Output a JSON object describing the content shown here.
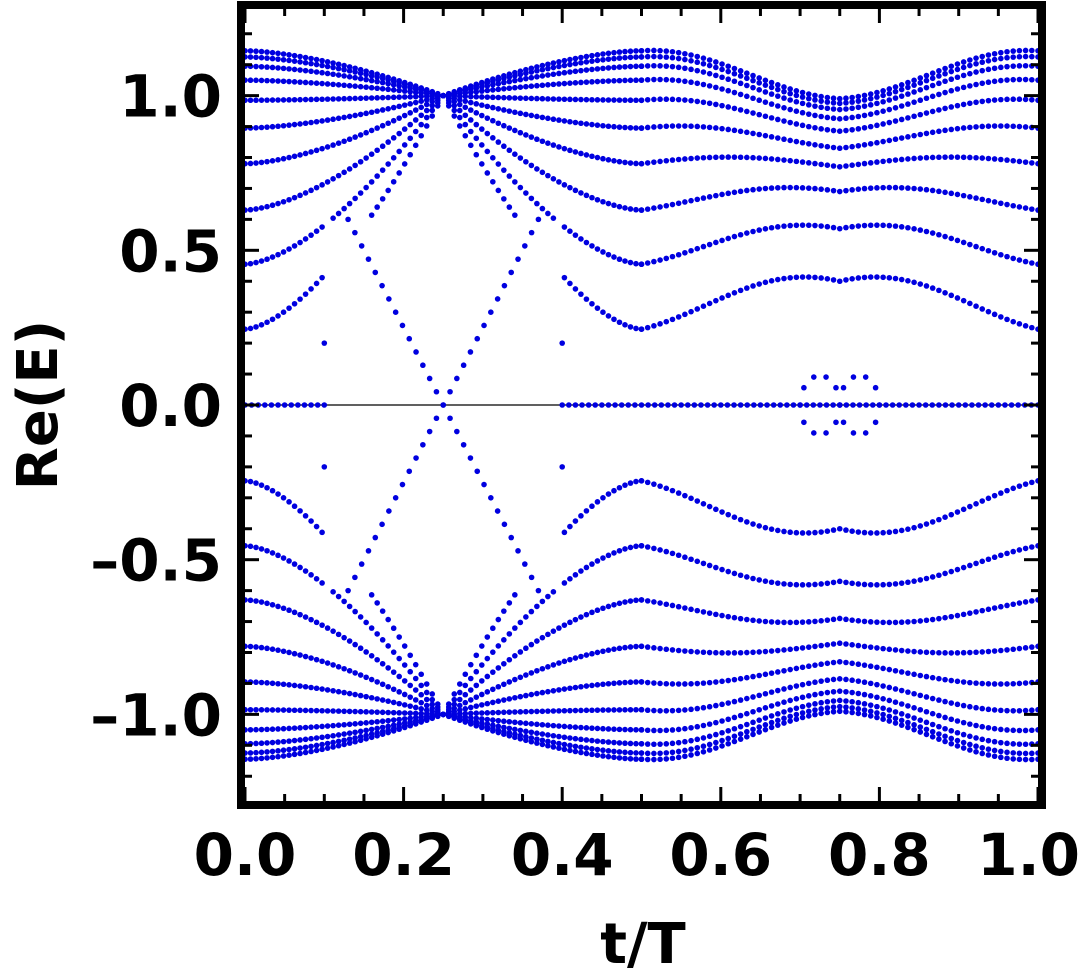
{
  "chart_data": {
    "type": "scatter",
    "xlabel": "t/T",
    "ylabel": "Re(E)",
    "xlim": [
      0.0,
      1.0
    ],
    "ylim": [
      -1.28,
      1.28
    ],
    "grid": false,
    "legend": "none",
    "marker_color": "#0000e0",
    "zero_line": true,
    "x_ticks": [
      {
        "value": 0.0,
        "label": "0.0"
      },
      {
        "value": 0.2,
        "label": "0.2"
      },
      {
        "value": 0.4,
        "label": "0.4"
      },
      {
        "value": 0.6,
        "label": "0.6"
      },
      {
        "value": 0.8,
        "label": "0.8"
      },
      {
        "value": 1.0,
        "label": "1.0"
      }
    ],
    "y_ticks": [
      {
        "value": 1.0,
        "label": "1.0"
      },
      {
        "value": 0.5,
        "label": "0.5"
      },
      {
        "value": 0.0,
        "label": "0.0"
      },
      {
        "value": -0.5,
        "label": "–0.5"
      },
      {
        "value": -1.0,
        "label": "–1.0"
      }
    ],
    "bands_segment1": {
      "x_range": [
        0.0,
        0.25
      ],
      "values_at_x0": [
        0.245,
        0.455,
        0.63,
        0.78,
        0.895,
        0.985,
        1.05,
        1.095,
        1.125,
        1.145
      ],
      "value_at_x_0_25": 1.0
    },
    "bands_segment2": {
      "x_range": [
        0.25,
        0.5
      ],
      "values_at_x0_5": [
        0.245,
        0.455,
        0.63,
        0.78,
        0.895,
        0.985,
        1.05,
        1.095,
        1.125,
        1.145
      ],
      "value_at_x_0_25": 1.0
    },
    "bands_segment3": {
      "x_range": [
        0.5,
        1.0
      ],
      "values_at_x0_5": [
        0.245,
        0.455,
        0.63,
        0.78,
        0.895,
        0.985,
        1.05,
        1.095,
        1.125,
        1.145
      ],
      "values_at_x0_75": [
        0.4,
        0.57,
        0.69,
        0.77,
        0.83,
        0.885,
        0.925,
        0.955,
        0.975,
        0.99
      ],
      "values_at_x1_0": [
        0.245,
        0.455,
        0.63,
        0.78,
        0.895,
        0.985,
        1.05,
        1.095,
        1.125,
        1.145
      ]
    },
    "crossing_lines": [
      {
        "x_start": 0.13,
        "y_start": 0.6,
        "x_end": 0.37,
        "y_end": -0.6
      },
      {
        "x_start": 0.13,
        "y_start": -0.6,
        "x_end": 0.37,
        "y_end": 0.6
      }
    ],
    "isolated_points": [
      {
        "x": 0.1,
        "y": 0.2
      },
      {
        "x": 0.1,
        "y": -0.2
      },
      {
        "x": 0.4,
        "y": 0.2
      },
      {
        "x": 0.4,
        "y": -0.2
      }
    ],
    "zero_mode_ranges": [
      [
        0.0,
        0.1
      ],
      [
        0.4,
        1.0
      ]
    ],
    "loops": [
      {
        "center_x": 0.725,
        "half_width": 0.025,
        "amplitude": 0.095
      },
      {
        "center_x": 0.775,
        "half_width": 0.025,
        "amplitude": 0.095
      }
    ]
  }
}
